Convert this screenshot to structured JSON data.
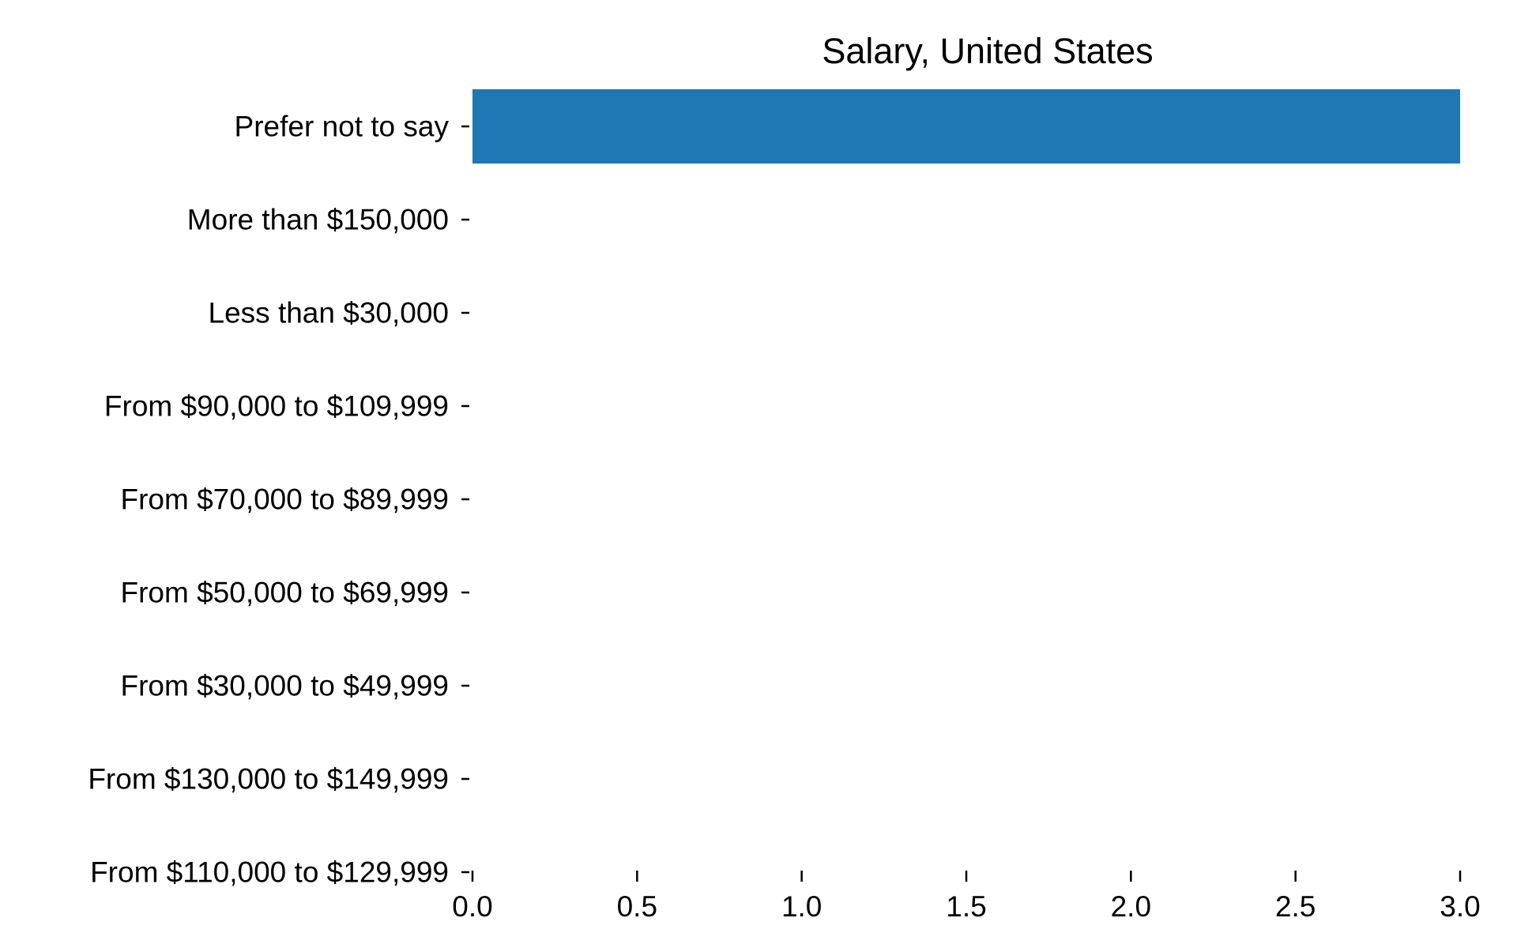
{
  "chart_data": {
    "type": "bar",
    "orientation": "horizontal",
    "title": "Salary, United States",
    "xlabel": "",
    "ylabel": "",
    "categories": [
      "Prefer not to say",
      "More than $150,000",
      "Less than $30,000",
      "From $90,000 to $109,999",
      "From $70,000 to $89,999",
      "From $50,000 to $69,999",
      "From $30,000 to $49,999",
      "From $130,000 to $149,999",
      "From $110,000 to $129,999"
    ],
    "values": [
      3,
      0,
      0,
      0,
      0,
      0,
      0,
      0,
      0
    ],
    "xlim": [
      0,
      3
    ],
    "xticks": [
      "0.0",
      "0.5",
      "1.0",
      "1.5",
      "2.0",
      "2.5",
      "3.0"
    ],
    "bar_color": "#1f77b4",
    "grid": false,
    "legend": "none"
  }
}
